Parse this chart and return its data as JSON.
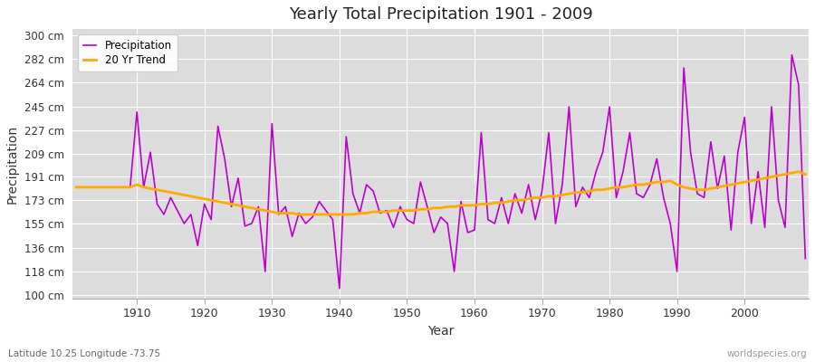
{
  "title": "Yearly Total Precipitation 1901 - 2009",
  "xlabel": "Year",
  "ylabel": "Precipitation",
  "subtitle": "Latitude 10.25 Longitude -73.75",
  "watermark": "worldspecies.org",
  "bg_color": "#ffffff",
  "plot_bg_color": "#dcdcdc",
  "precip_color": "#bb00cc",
  "trend_color": "#ffaa00",
  "years": [
    1901,
    1902,
    1903,
    1904,
    1905,
    1906,
    1907,
    1908,
    1909,
    1910,
    1911,
    1912,
    1913,
    1914,
    1915,
    1916,
    1917,
    1918,
    1919,
    1920,
    1921,
    1922,
    1923,
    1924,
    1925,
    1926,
    1927,
    1928,
    1929,
    1930,
    1931,
    1932,
    1933,
    1934,
    1935,
    1936,
    1937,
    1938,
    1939,
    1940,
    1941,
    1942,
    1943,
    1944,
    1945,
    1946,
    1947,
    1948,
    1949,
    1950,
    1951,
    1952,
    1953,
    1954,
    1955,
    1956,
    1957,
    1958,
    1959,
    1960,
    1961,
    1962,
    1963,
    1964,
    1965,
    1966,
    1967,
    1968,
    1969,
    1970,
    1971,
    1972,
    1973,
    1974,
    1975,
    1976,
    1977,
    1978,
    1979,
    1980,
    1981,
    1982,
    1983,
    1984,
    1985,
    1986,
    1987,
    1988,
    1989,
    1990,
    1991,
    1992,
    1993,
    1994,
    1995,
    1996,
    1997,
    1998,
    1999,
    2000,
    2001,
    2002,
    2003,
    2004,
    2005,
    2006,
    2007,
    2008,
    2009
  ],
  "precip": [
    183,
    183,
    183,
    183,
    183,
    183,
    183,
    183,
    183,
    241,
    183,
    210,
    170,
    162,
    175,
    165,
    155,
    162,
    138,
    170,
    158,
    230,
    205,
    168,
    190,
    153,
    155,
    168,
    118,
    232,
    162,
    168,
    145,
    163,
    155,
    160,
    172,
    165,
    158,
    105,
    222,
    178,
    163,
    185,
    180,
    163,
    165,
    152,
    168,
    158,
    155,
    187,
    168,
    148,
    160,
    155,
    118,
    172,
    148,
    150,
    225,
    158,
    155,
    175,
    155,
    178,
    163,
    185,
    158,
    180,
    225,
    155,
    185,
    245,
    168,
    183,
    175,
    195,
    210,
    245,
    175,
    195,
    225,
    178,
    175,
    185,
    205,
    175,
    155,
    118,
    275,
    210,
    178,
    175,
    218,
    182,
    207,
    150,
    210,
    237,
    155,
    195,
    152,
    245,
    173,
    152,
    285,
    262,
    128
  ],
  "trend": [
    183,
    183,
    183,
    183,
    183,
    183,
    183,
    183,
    183,
    185,
    183,
    182,
    181,
    180,
    179,
    178,
    177,
    176,
    175,
    174,
    173,
    172,
    171,
    170,
    169,
    168,
    167,
    166,
    165,
    164,
    163,
    163,
    163,
    162,
    162,
    162,
    162,
    162,
    162,
    162,
    162,
    162,
    163,
    163,
    164,
    164,
    164,
    165,
    165,
    165,
    165,
    166,
    166,
    167,
    167,
    168,
    168,
    169,
    169,
    169,
    170,
    170,
    171,
    171,
    172,
    173,
    173,
    174,
    175,
    175,
    176,
    176,
    177,
    178,
    179,
    179,
    180,
    181,
    181,
    182,
    183,
    183,
    184,
    185,
    185,
    186,
    187,
    187,
    188,
    185,
    183,
    182,
    181,
    181,
    182,
    183,
    184,
    185,
    186,
    187,
    188,
    189,
    190,
    191,
    192,
    193,
    194,
    195,
    193
  ],
  "yticks": [
    100,
    118,
    136,
    155,
    173,
    191,
    209,
    227,
    245,
    264,
    282,
    300
  ],
  "ytick_labels": [
    "100 cm",
    "118 cm",
    "136 cm",
    "155 cm",
    "173 cm",
    "191 cm",
    "209 cm",
    "227 cm",
    "245 cm",
    "264 cm",
    "282 cm",
    "300 cm"
  ],
  "ylim": [
    97,
    305
  ],
  "xlim": [
    1900.5,
    2009.5
  ]
}
